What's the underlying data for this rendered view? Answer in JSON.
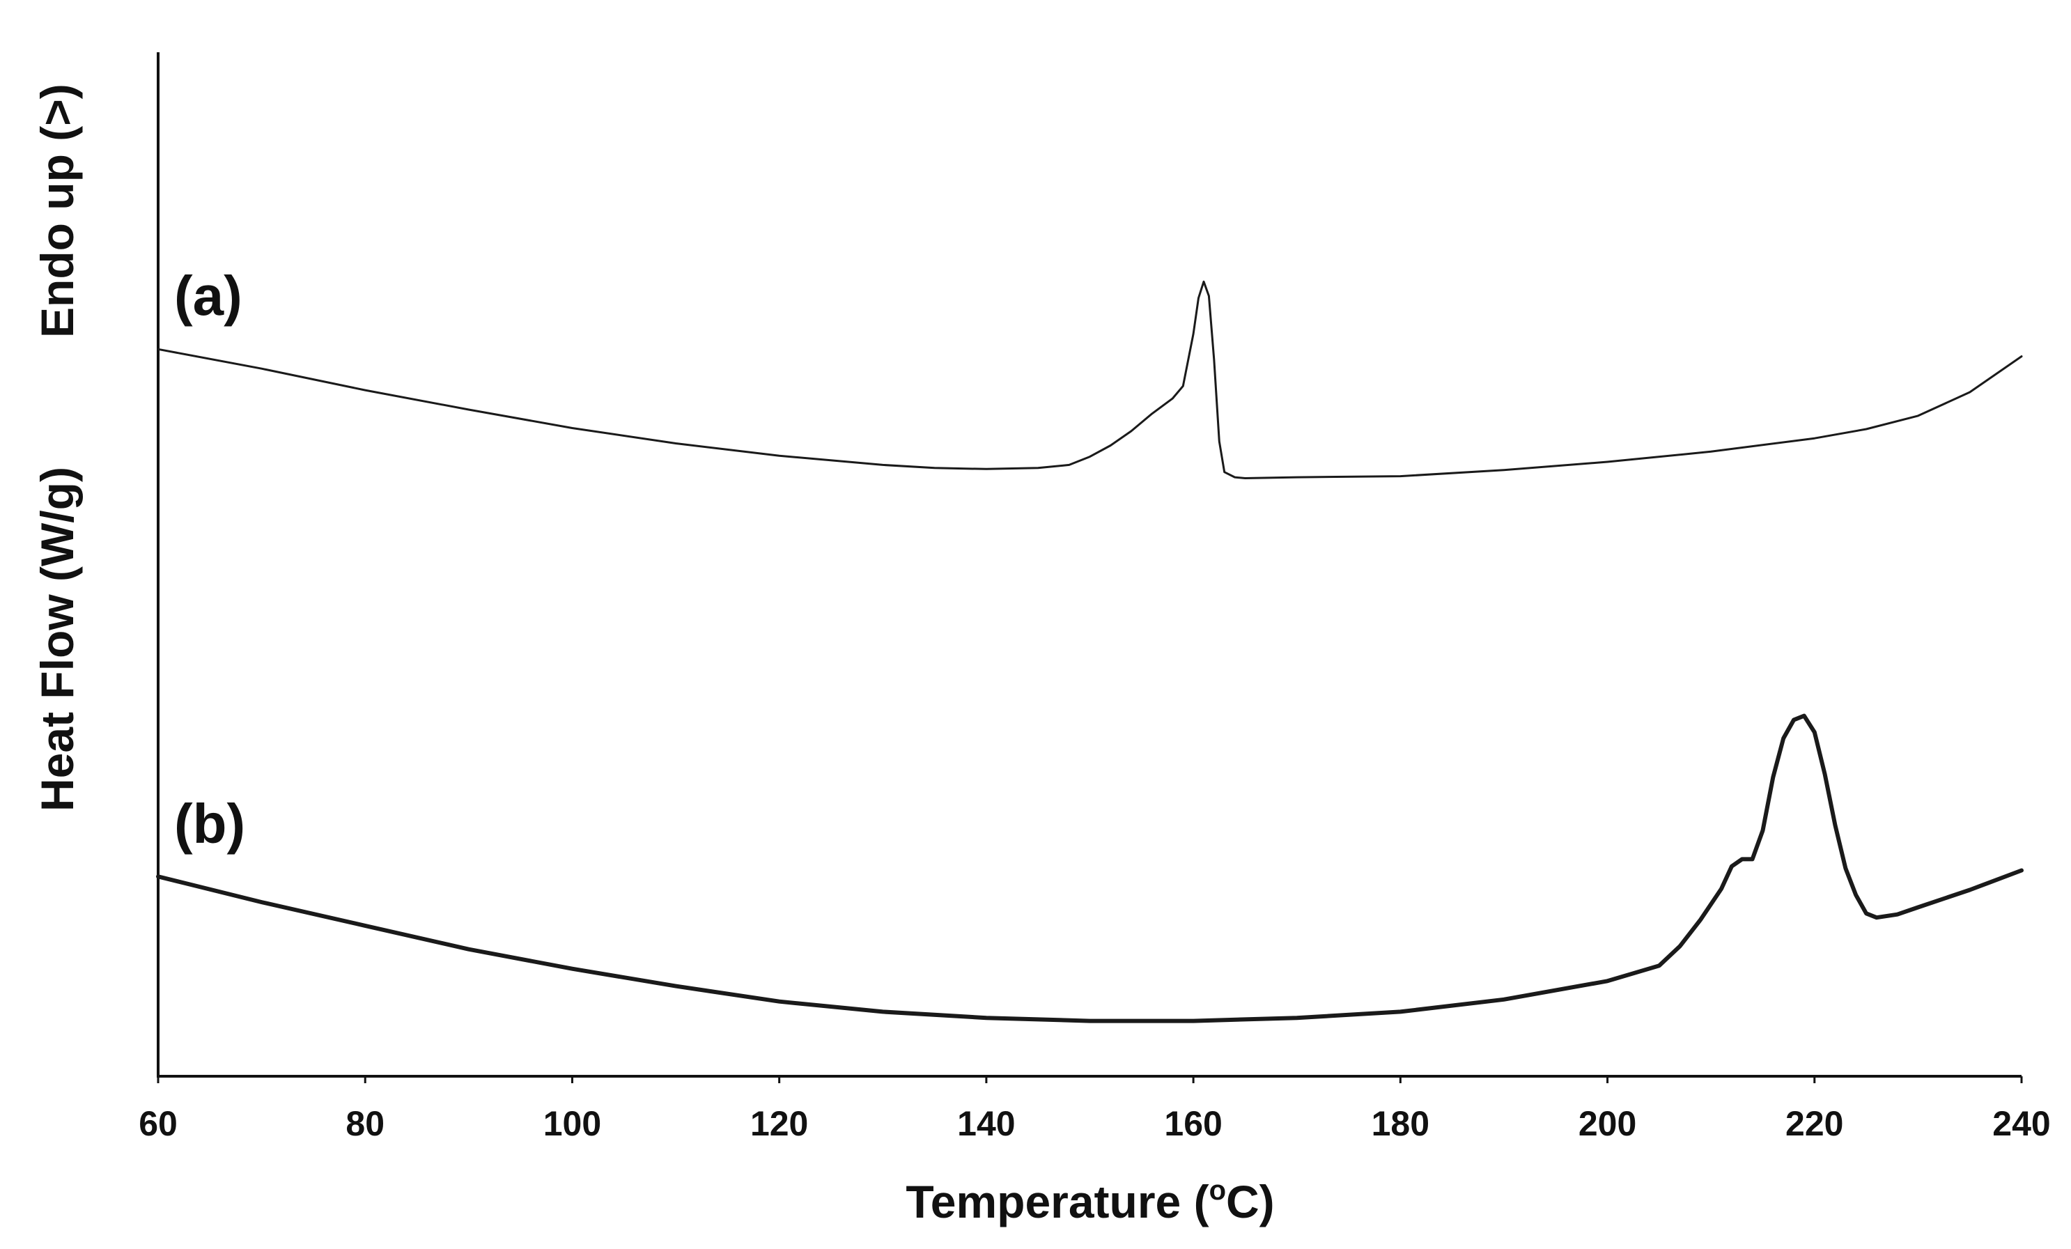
{
  "chart_data": {
    "type": "line",
    "xlabel": {
      "prefix": "Temperature (",
      "sup": "o",
      "suffix": "C)"
    },
    "ylabel": "Heat Flow (W/g)",
    "ylabel_note": "Endo up (>)",
    "xlim": [
      60,
      240
    ],
    "xticks": [
      60,
      80,
      100,
      120,
      140,
      160,
      180,
      200,
      220,
      240
    ],
    "ylim": [
      0,
      10
    ],
    "y_ticks_shown": false,
    "grid": false,
    "colors": {
      "line": "#1a1a1a",
      "axis": "#111111",
      "text": "#111111"
    },
    "series": [
      {
        "name": "(a)",
        "stroke": "thin",
        "points": [
          [
            60,
            7.1
          ],
          [
            70,
            6.91
          ],
          [
            80,
            6.7
          ],
          [
            90,
            6.51
          ],
          [
            100,
            6.33
          ],
          [
            110,
            6.18
          ],
          [
            120,
            6.06
          ],
          [
            130,
            5.97
          ],
          [
            135,
            5.94
          ],
          [
            140,
            5.93
          ],
          [
            145,
            5.94
          ],
          [
            148,
            5.97
          ],
          [
            150,
            6.05
          ],
          [
            152,
            6.16
          ],
          [
            154,
            6.3
          ],
          [
            156,
            6.47
          ],
          [
            158,
            6.62
          ],
          [
            159,
            6.74
          ],
          [
            160,
            7.25
          ],
          [
            160.5,
            7.6
          ],
          [
            161,
            7.76
          ],
          [
            161.5,
            7.62
          ],
          [
            162,
            7.0
          ],
          [
            162.5,
            6.2
          ],
          [
            163,
            5.9
          ],
          [
            164,
            5.85
          ],
          [
            165,
            5.84
          ],
          [
            170,
            5.85
          ],
          [
            180,
            5.86
          ],
          [
            190,
            5.92
          ],
          [
            200,
            6.0
          ],
          [
            210,
            6.1
          ],
          [
            220,
            6.23
          ],
          [
            225,
            6.32
          ],
          [
            230,
            6.45
          ],
          [
            235,
            6.68
          ],
          [
            240,
            7.03
          ]
        ]
      },
      {
        "name": "(b)",
        "stroke": "thick",
        "points": [
          [
            60,
            1.95
          ],
          [
            70,
            1.7
          ],
          [
            80,
            1.47
          ],
          [
            90,
            1.24
          ],
          [
            100,
            1.05
          ],
          [
            110,
            0.88
          ],
          [
            120,
            0.73
          ],
          [
            130,
            0.63
          ],
          [
            140,
            0.57
          ],
          [
            150,
            0.54
          ],
          [
            160,
            0.54
          ],
          [
            170,
            0.57
          ],
          [
            180,
            0.63
          ],
          [
            190,
            0.75
          ],
          [
            200,
            0.93
          ],
          [
            205,
            1.08
          ],
          [
            207,
            1.27
          ],
          [
            209,
            1.53
          ],
          [
            211,
            1.83
          ],
          [
            212,
            2.05
          ],
          [
            213,
            2.12
          ],
          [
            214,
            2.12
          ],
          [
            215,
            2.4
          ],
          [
            216,
            2.92
          ],
          [
            217,
            3.3
          ],
          [
            218,
            3.48
          ],
          [
            219,
            3.52
          ],
          [
            220,
            3.36
          ],
          [
            221,
            2.95
          ],
          [
            222,
            2.45
          ],
          [
            223,
            2.03
          ],
          [
            224,
            1.77
          ],
          [
            225,
            1.59
          ],
          [
            226,
            1.55
          ],
          [
            228,
            1.58
          ],
          [
            230,
            1.65
          ],
          [
            235,
            1.82
          ],
          [
            240,
            2.01
          ]
        ]
      }
    ]
  }
}
